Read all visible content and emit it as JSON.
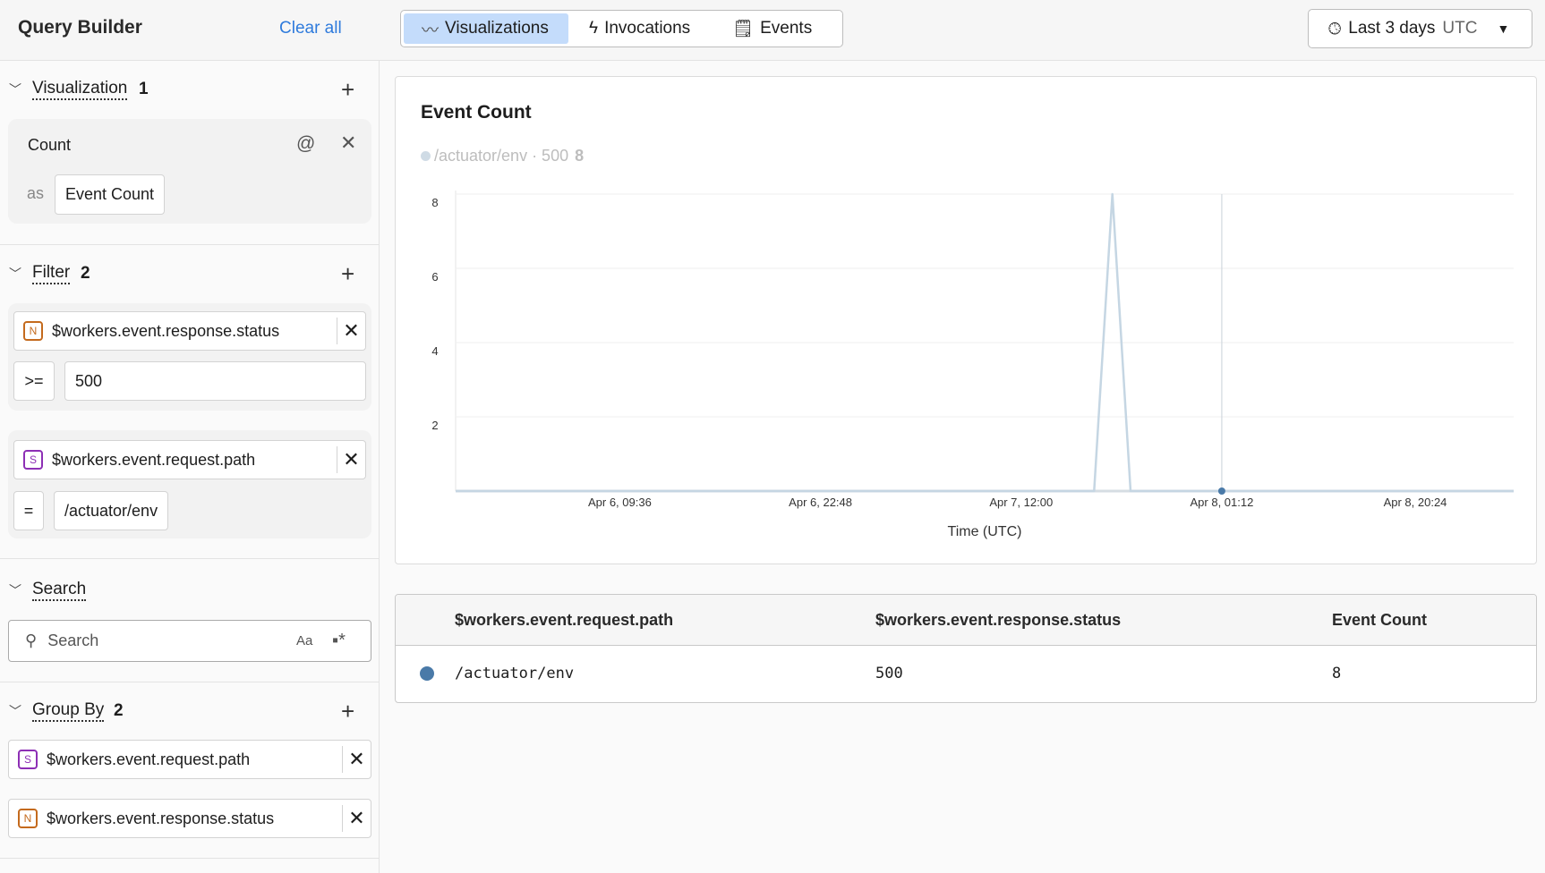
{
  "sidebar": {
    "title": "Query Builder",
    "clear_all": "Clear all",
    "visualization": {
      "label": "Visualization",
      "count": "1",
      "func": "Count",
      "as_label": "as",
      "alias": "Event Count"
    },
    "filter": {
      "label": "Filter",
      "count": "2",
      "items": [
        {
          "type": "N",
          "field": "$workers.event.response.status",
          "operator": ">=",
          "value": "500"
        },
        {
          "type": "S",
          "field": "$workers.event.request.path",
          "operator": "=",
          "value": "/actuator/env"
        }
      ]
    },
    "search": {
      "label": "Search",
      "placeholder": "Search",
      "case_label": "Aa",
      "regex_label": "*"
    },
    "group_by": {
      "label": "Group By",
      "count": "2",
      "items": [
        {
          "type": "S",
          "field": "$workers.event.request.path"
        },
        {
          "type": "N",
          "field": "$workers.event.response.status"
        }
      ]
    }
  },
  "header": {
    "tabs": [
      {
        "label": "Visualizations",
        "icon": "line-chart-icon",
        "active": true
      },
      {
        "label": "Invocations",
        "icon": "lightning-icon"
      },
      {
        "label": "Events",
        "icon": "document-icon"
      }
    ],
    "time_range": "Last 3 days",
    "timezone": "UTC"
  },
  "chart_data": {
    "type": "line",
    "title": "Event Count",
    "legend": {
      "series": "/actuator/env · 500",
      "value": "8",
      "position": "top-left"
    },
    "xlabel": "Time (UTC)",
    "ylabel": "",
    "xlim": [
      "Apr 5, 22:48",
      "Apr 8, 20:24"
    ],
    "ylim": [
      0,
      8
    ],
    "yticks": [
      2,
      4,
      6,
      8
    ],
    "xticks": [
      "Apr 6, 09:36",
      "Apr 6, 22:48",
      "Apr 7, 12:00",
      "Apr 8, 01:12",
      "Apr 8, 20:24"
    ],
    "grid": true,
    "series": [
      {
        "name": "/actuator/env · 500",
        "color": "#c5d6e3",
        "points": [
          [
            "Apr 5, 22:48",
            0
          ],
          [
            "Apr 7, 16:48",
            0
          ],
          [
            "Apr 7, 18:00",
            8
          ],
          [
            "Apr 7, 19:12",
            0
          ],
          [
            "Apr 8, 20:24",
            0
          ]
        ]
      }
    ],
    "cursor": {
      "x": "Apr 8, 01:12",
      "y": 0,
      "color": "#4a7aa8"
    }
  },
  "table": {
    "columns": [
      "$workers.event.request.path",
      "$workers.event.response.status",
      "Event Count"
    ],
    "rows": [
      {
        "color": "#4a7aa8",
        "cells": [
          "/actuator/env",
          "500",
          "8"
        ]
      }
    ]
  }
}
